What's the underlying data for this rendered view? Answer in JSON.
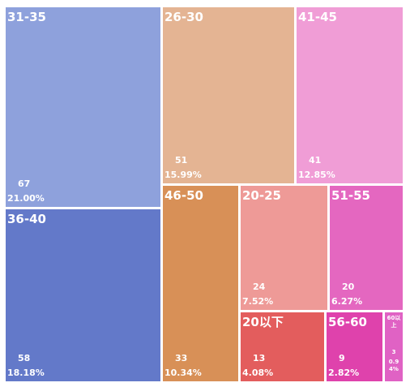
{
  "chart_data": {
    "type": "treemap",
    "items": [
      {
        "name": "31-35",
        "value": 67,
        "percent": "21.00%",
        "color": "#8ea1dc"
      },
      {
        "name": "36-40",
        "value": 58,
        "percent": "18.18%",
        "color": "#6379c9"
      },
      {
        "name": "26-30",
        "value": 51,
        "percent": "15.99%",
        "color": "#e4b493"
      },
      {
        "name": "41-45",
        "value": 41,
        "percent": "12.85%",
        "color": "#f09dd6"
      },
      {
        "name": "46-50",
        "value": 33,
        "percent": "10.34%",
        "color": "#d89057"
      },
      {
        "name": "20-25",
        "value": 24,
        "percent": "7.52%",
        "color": "#ee9a97"
      },
      {
        "name": "51-55",
        "value": 20,
        "percent": "6.27%",
        "color": "#e467c0"
      },
      {
        "name": "20以下",
        "value": 13,
        "percent": "4.08%",
        "color": "#e35d5d"
      },
      {
        "name": "56-60",
        "value": 9,
        "percent": "2.82%",
        "color": "#df42ac"
      },
      {
        "name": "60以上",
        "value": 3,
        "percent": "0.94%",
        "color": "#e062c4"
      }
    ]
  }
}
